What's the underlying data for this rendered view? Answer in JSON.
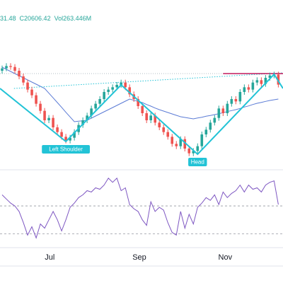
{
  "chart_data": {
    "type": "candlestick",
    "info": [
      "31.48",
      "C20606.42",
      "Vol263.446M"
    ],
    "info_color": "#26a69a",
    "up_color": "#26a69a",
    "down_color": "#ef5350",
    "xlim": [
      -0.5,
      66.1
    ],
    "ylim": [
      18800,
      21200
    ],
    "xticks": [
      {
        "value": 11.2,
        "label": "Jul"
      },
      {
        "value": 32.3,
        "label": "Sep"
      },
      {
        "value": 52.5,
        "label": "Nov"
      }
    ],
    "open": [
      20900,
      20950,
      21000,
      20980,
      20900,
      20780,
      20650,
      20500,
      20380,
      20200,
      20050,
      19850,
      19900,
      19700,
      19600,
      19500,
      19420,
      19480,
      19600,
      19750,
      19850,
      19950,
      20100,
      20200,
      20300,
      20450,
      20500,
      20550,
      20600,
      20650,
      20550,
      20400,
      20300,
      20150,
      20000,
      19850,
      19950,
      19800,
      19700,
      19600,
      19500,
      19350,
      19300,
      19450,
      19250,
      19150,
      19200,
      19300,
      19550,
      19650,
      19800,
      19900,
      20100,
      20000,
      20200,
      20300,
      20250,
      20450,
      20550,
      20500,
      20650,
      20700,
      20620,
      20750,
      20800,
      20820
    ],
    "high": [
      21010,
      21060,
      21060,
      21040,
      20960,
      20840,
      20710,
      20560,
      20440,
      20260,
      20110,
      19960,
      19960,
      19760,
      19660,
      19560,
      19540,
      19660,
      19810,
      19910,
      20010,
      20160,
      20260,
      20360,
      20510,
      20560,
      20610,
      20660,
      20710,
      20710,
      20610,
      20460,
      20360,
      20210,
      20060,
      20010,
      20010,
      19860,
      19760,
      19660,
      19560,
      19410,
      19510,
      19510,
      19310,
      19260,
      19360,
      19610,
      19710,
      19860,
      19960,
      20160,
      20160,
      20260,
      20360,
      20360,
      20510,
      20610,
      20610,
      20710,
      20760,
      20760,
      20810,
      20860,
      20880,
      20880
    ],
    "low": [
      20840,
      20890,
      20920,
      20840,
      20720,
      20590,
      20440,
      20320,
      20140,
      19990,
      19790,
      19790,
      19640,
      19540,
      19440,
      19360,
      19360,
      19420,
      19540,
      19690,
      19790,
      19890,
      20040,
      20140,
      20240,
      20390,
      20440,
      20490,
      20540,
      20490,
      20340,
      20240,
      20090,
      19940,
      19790,
      19790,
      19740,
      19640,
      19540,
      19440,
      19290,
      19240,
      19240,
      19190,
      19090,
      19090,
      19140,
      19240,
      19490,
      19590,
      19740,
      19840,
      19940,
      19940,
      20140,
      20190,
      20190,
      20390,
      20440,
      20440,
      20590,
      20560,
      20560,
      20690,
      20740,
      20546
    ],
    "close": [
      20950,
      21000,
      20980,
      20900,
      20780,
      20650,
      20500,
      20380,
      20200,
      20050,
      19850,
      19900,
      19700,
      19600,
      19500,
      19420,
      19480,
      19600,
      19750,
      19850,
      19950,
      20100,
      20200,
      20300,
      20450,
      20500,
      20550,
      20600,
      20650,
      20550,
      20400,
      20300,
      20150,
      20000,
      19850,
      19950,
      19800,
      19700,
      19600,
      19500,
      19350,
      19300,
      19450,
      19250,
      19150,
      19200,
      19300,
      19550,
      19650,
      19800,
      19900,
      20100,
      20000,
      20200,
      20300,
      20250,
      20450,
      20550,
      20500,
      20650,
      20700,
      20620,
      20750,
      20800,
      20820,
      20606
    ],
    "ma": {
      "color": "#5b7bd5",
      "values": [
        20975,
        20930,
        20885,
        20840,
        20795,
        20750,
        20705,
        20660,
        20615,
        20570,
        20525,
        20425,
        20325,
        20225,
        20125,
        20020,
        19920,
        19820,
        19830,
        19840,
        19850,
        19895,
        19940,
        19985,
        20030,
        20075,
        20120,
        20165,
        20210,
        20255,
        20300,
        20275,
        20250,
        20225,
        20185,
        20150,
        20110,
        20075,
        20045,
        20015,
        19985,
        19955,
        19925,
        19910,
        19895,
        19880,
        19900,
        19915,
        19935,
        19950,
        19970,
        19990,
        20010,
        20035,
        20055,
        20075,
        20100,
        20130,
        20155,
        20185,
        20210,
        20230,
        20250,
        20270,
        20285,
        20300
      ]
    },
    "pattern": {
      "color": "#22c3d6",
      "x": [
        -0.5,
        15,
        28,
        46,
        64,
        66.1
      ],
      "values": [
        20525,
        19400,
        20600,
        19130,
        20825,
        20525
      ]
    },
    "neckline": {
      "color": "#22c3d6",
      "x": [
        2.8,
        66.1
      ],
      "values": [
        20525,
        20855
      ]
    },
    "level": {
      "color": "#b0bec5",
      "value": 20840
    },
    "resistance": {
      "color": "#c2185b",
      "x": [
        52,
        66.1
      ],
      "value": 20840
    },
    "annotations": [
      {
        "text": "Left Shoulder",
        "x": 15
      },
      {
        "text": "Head",
        "x": 46
      }
    ],
    "rsi": {
      "color": "#7e57c2",
      "ylim": [
        20,
        76
      ],
      "levels": [
        30,
        50
      ],
      "values": [
        58,
        55,
        52,
        50,
        46,
        38,
        29,
        35,
        27,
        37,
        34,
        40,
        46,
        40,
        32,
        40,
        49,
        52,
        56,
        58,
        61,
        60,
        63,
        62,
        65,
        70,
        67,
        70,
        61,
        63,
        51,
        48,
        46,
        40,
        36,
        53,
        46,
        49,
        47,
        38,
        31,
        29,
        46,
        34,
        44,
        37,
        49,
        52,
        56,
        54,
        58,
        51,
        60,
        56,
        59,
        61,
        65,
        60,
        65,
        62,
        63,
        60,
        65,
        67,
        68,
        51
      ]
    }
  }
}
